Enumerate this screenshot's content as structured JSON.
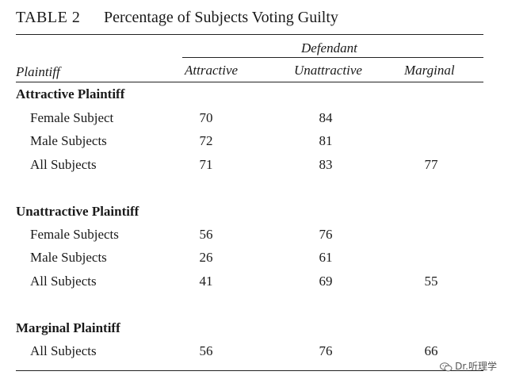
{
  "table": {
    "label": "TABLE 2",
    "title": "Percentage of Subjects Voting Guilty",
    "defendant_label": "Defendant",
    "plaintiff_header": "Plaintiff",
    "columns": [
      "Attractive",
      "Unattractive",
      "Marginal"
    ],
    "groups": [
      {
        "label": "Attractive Plaintiff",
        "rows": [
          {
            "label": "Female Subject",
            "values": [
              "70",
              "84",
              ""
            ]
          },
          {
            "label": "Male Subjects",
            "values": [
              "72",
              "81",
              ""
            ]
          },
          {
            "label": "All Subjects",
            "values": [
              "71",
              "83",
              "77"
            ]
          }
        ]
      },
      {
        "label": "Unattractive Plaintiff",
        "rows": [
          {
            "label": "Female Subjects",
            "values": [
              "56",
              "76",
              ""
            ]
          },
          {
            "label": "Male Subjects",
            "values": [
              "26",
              "61",
              ""
            ]
          },
          {
            "label": "All Subjects",
            "values": [
              "41",
              "69",
              "55"
            ]
          }
        ]
      },
      {
        "label": "Marginal Plaintiff",
        "rows": [
          {
            "label": "All Subjects",
            "values": [
              "56",
              "76",
              "66"
            ]
          }
        ]
      }
    ]
  },
  "watermark": {
    "text": "Dr.听理学",
    "icon": "wechat-icon"
  }
}
